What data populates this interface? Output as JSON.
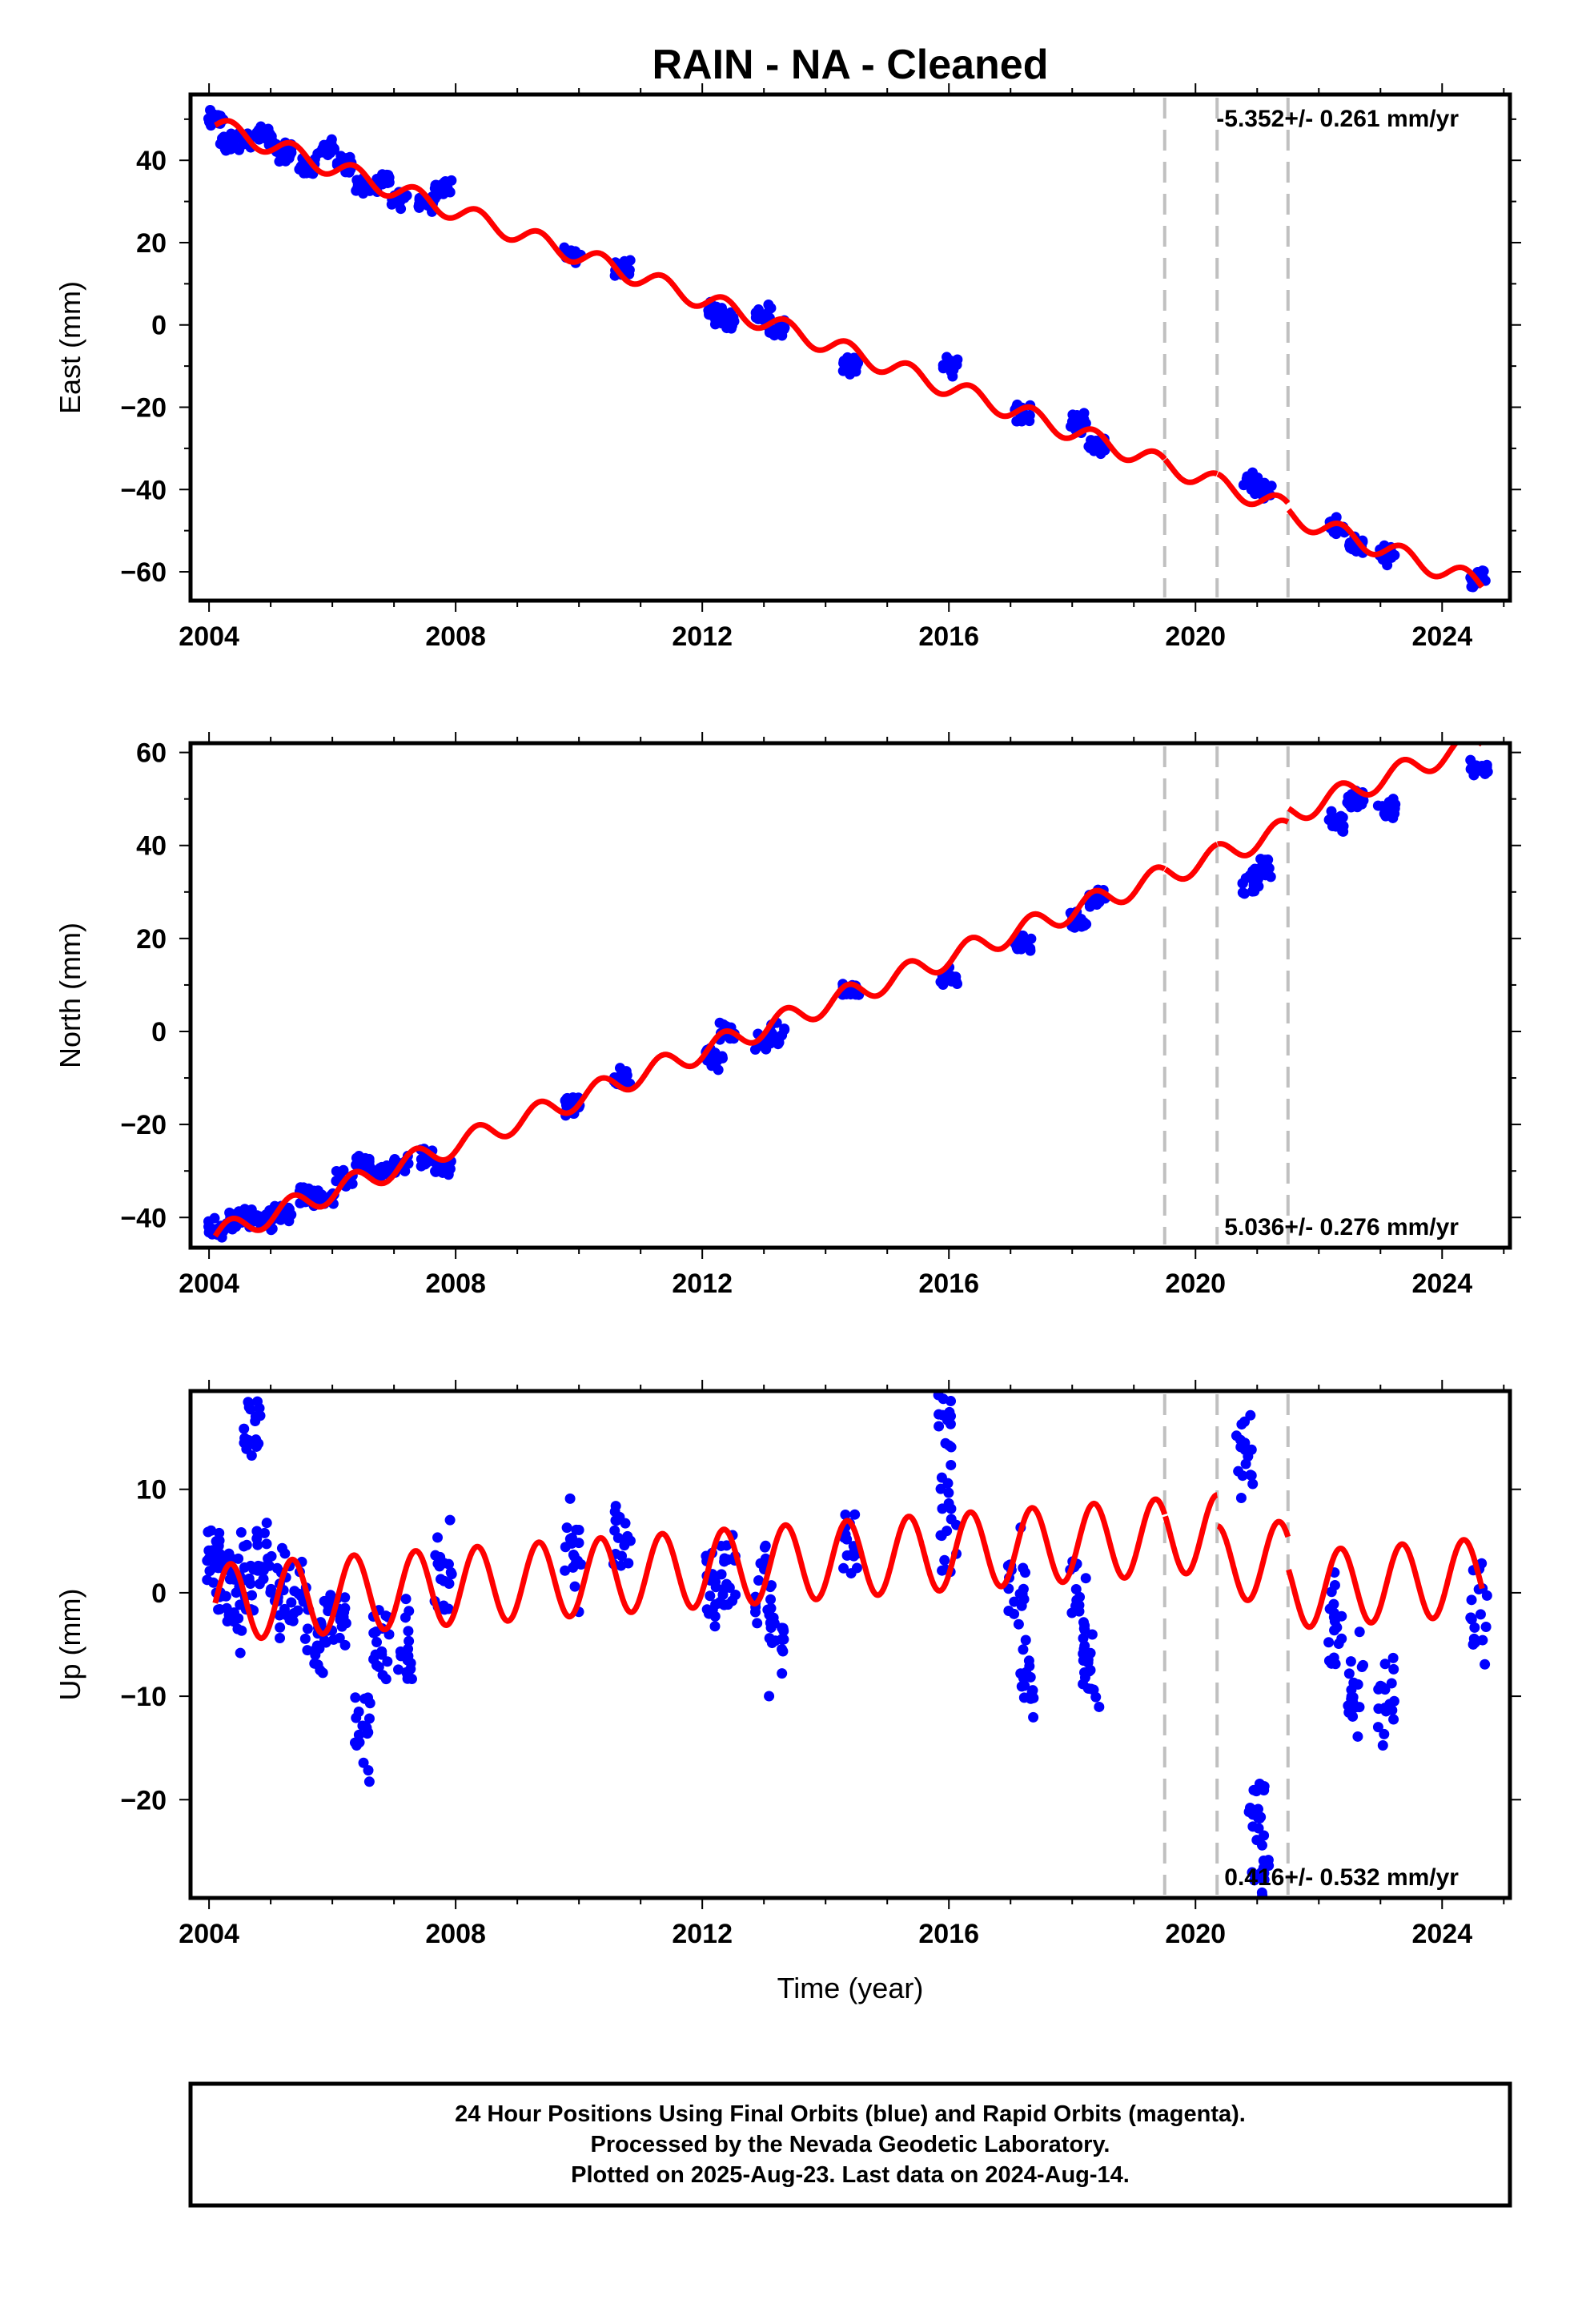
{
  "title": "RAIN  - NA - Cleaned",
  "colors": {
    "final_orbits": "#0000ff",
    "model": "#ff0000",
    "steps": "#c0c0c0",
    "frame": "#000000"
  },
  "chart_data": [
    {
      "type": "scatter",
      "component": "East",
      "ylabel": "East (mm)",
      "xlabel": "",
      "xlim": [
        2003.7,
        2025.1
      ],
      "ylim": [
        -67,
        56
      ],
      "yticks": [
        -60,
        -40,
        -20,
        0,
        20,
        40
      ],
      "xticks": [
        2004,
        2008,
        2012,
        2016,
        2020,
        2024
      ],
      "grid": false,
      "rate_text": "-5.352+/- 0.261 mm/yr",
      "rate_position": "top-right",
      "model": {
        "start": 48.5,
        "slope": -5.352,
        "amplitude": 2.3,
        "period": 1.0,
        "offsets": {
          "2019.5": 0.0,
          "2020.35": 0.0,
          "2021.5": -1.5
        }
      },
      "series": [
        {
          "x": [
            2004.1,
            2004.3,
            2004.6,
            2004.9,
            2005.2,
            2005.6,
            2005.9,
            2006.2,
            2006.5,
            2006.8,
            2007.1,
            2007.5,
            2007.8,
            2009.9,
            2010.7,
            2012.2,
            2012.4,
            2013.0,
            2013.2,
            2014.4,
            2016.0,
            2017.2,
            2018.1,
            2018.4,
            2020.9,
            2021.1,
            2022.3,
            2022.6,
            2023.1,
            2024.6
          ],
          "y": [
            50,
            44,
            45,
            46,
            42,
            39,
            43,
            39,
            33,
            35,
            31,
            30,
            33,
            17,
            14,
            3,
            1,
            3,
            -1,
            -10,
            -10,
            -21,
            -24,
            -29,
            -38,
            -41,
            -49,
            -53,
            -56,
            -62
          ]
        }
      ]
    },
    {
      "type": "scatter",
      "component": "North",
      "ylabel": "North (mm)",
      "xlabel": "",
      "xlim": [
        2003.7,
        2025.1
      ],
      "ylim": [
        -46.5,
        62
      ],
      "yticks": [
        -40,
        -20,
        0,
        20,
        40,
        60
      ],
      "xticks": [
        2004,
        2008,
        2012,
        2016,
        2020,
        2024
      ],
      "grid": false,
      "rate_text": "5.036+/- 0.276 mm/yr",
      "rate_position": "bottom-right",
      "model": {
        "start": -44.0,
        "slope": 5.036,
        "amplitude": 2.4,
        "period": 1.0,
        "offsets": {
          "2019.5": 0.0,
          "2020.35": 0.0,
          "2021.5": 3.0
        }
      },
      "series": [
        {
          "x": [
            2004.1,
            2004.3,
            2004.6,
            2004.9,
            2005.2,
            2005.6,
            2005.9,
            2006.2,
            2006.5,
            2006.8,
            2007.1,
            2007.5,
            2007.8,
            2009.9,
            2010.7,
            2012.2,
            2012.4,
            2013.0,
            2013.2,
            2014.4,
            2016.0,
            2017.2,
            2018.1,
            2018.4,
            2020.9,
            2021.1,
            2022.3,
            2022.6,
            2023.1,
            2024.6
          ],
          "y": [
            -43,
            -41,
            -40,
            -41,
            -39,
            -36,
            -36,
            -32,
            -29,
            -30,
            -29,
            -27,
            -29,
            -16,
            -10,
            -6,
            0,
            -2,
            -1,
            9,
            11,
            19,
            24,
            29,
            32,
            35,
            45,
            50,
            48,
            57
          ]
        }
      ]
    },
    {
      "type": "scatter",
      "component": "Up",
      "ylabel": "Up (mm)",
      "xlabel": "Time (year)",
      "xlim": [
        2003.7,
        2025.1
      ],
      "ylim": [
        -29.5,
        19.5
      ],
      "yticks": [
        -20,
        -10,
        0,
        10
      ],
      "xticks": [
        2004,
        2008,
        2012,
        2016,
        2020,
        2024
      ],
      "grid": false,
      "rate_text": "0.416+/- 0.532 mm/yr",
      "rate_position": "bottom-right",
      "model": {
        "start": -1.0,
        "slope": 0.416,
        "amplitude": 3.7,
        "period": 1.0,
        "offsets": {
          "2019.5": 0.0,
          "2020.35": -3.0,
          "2021.5": -3.0
        }
      },
      "series": [
        {
          "x": [
            2004.1,
            2004.2,
            2004.4,
            2004.6,
            2004.7,
            2004.9,
            2005.2,
            2005.5,
            2005.8,
            2006.1,
            2006.5,
            2006.8,
            2007.2,
            2007.8,
            2009.9,
            2010.7,
            2012.2,
            2012.4,
            2013.0,
            2013.2,
            2014.4,
            2015.9,
            2016.0,
            2017.1,
            2017.3,
            2018.1,
            2018.3,
            2020.8,
            2021.0,
            2021.05,
            2022.3,
            2022.6,
            2023.1,
            2024.6
          ],
          "y": [
            4,
            2,
            -1,
            1,
            16,
            3,
            0,
            -2,
            -4,
            -2,
            -13,
            -5,
            -6,
            2,
            4,
            5,
            1,
            2,
            1,
            -5,
            4,
            18,
            7,
            1,
            -8,
            -2,
            -8,
            14,
            -22,
            -28,
            -3,
            -8,
            -10,
            -2
          ]
        }
      ]
    }
  ],
  "step_dates": [
    2019.5,
    2020.35,
    2021.5
  ],
  "footer": {
    "line1": "24 Hour Positions Using Final Orbits (blue) and Rapid Orbits (magenta).",
    "line2": "Processed by the Nevada Geodetic Laboratory.",
    "line3": "Plotted on 2025-Aug-23. Last data on 2024-Aug-14."
  }
}
